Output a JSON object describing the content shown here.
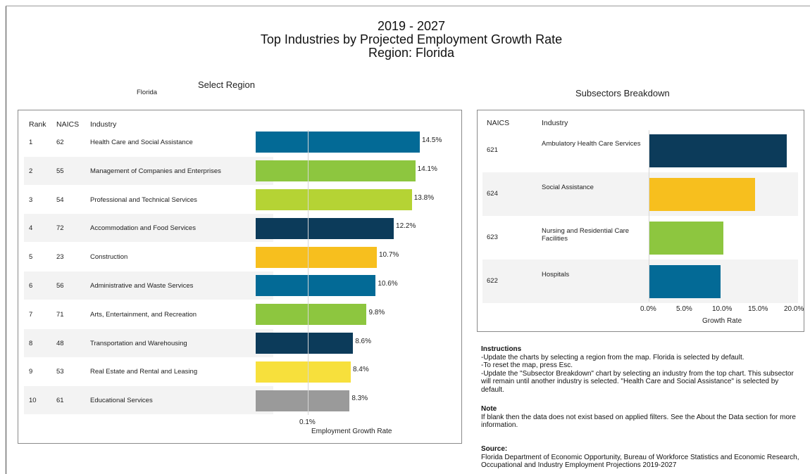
{
  "header": {
    "line1": "2019 - 2027",
    "line2": "Top Industries by Projected Employment Growth Rate",
    "line3": "Region: Florida"
  },
  "region_select": {
    "label": "Select Region",
    "value": "Florida"
  },
  "subsectors_title": "Subsectors Breakdown",
  "instructions": {
    "heading": "Instructions",
    "lines": [
      "-Update the charts by selecting a region from the map. Florida is selected by default.",
      "-To reset the map, press Esc.",
      "-Update the \"Subsector Breakdown\" chart by selecting an industry from the top chart. This subsector will remain until another industry is selected. \"Health Care and Social Assistance\" is selected by default."
    ]
  },
  "note": {
    "heading": "Note",
    "text": "If blank then the data does not exist based on applied filters. See the About the Data section for more information."
  },
  "source": {
    "heading": "Source:",
    "text": "Florida Department of Economic Opportunity, Bureau of Workforce Statistics and Economic Research, Occupational and Industry Employment Projections 2019-2027"
  },
  "chart_data": [
    {
      "type": "bar",
      "orientation": "horizontal",
      "columns": [
        "Rank",
        "NAICS",
        "Industry"
      ],
      "rows": [
        {
          "rank": "1",
          "naics": "62",
          "industry": "Health Care and Social Assistance",
          "value": 14.5,
          "label": "14.5%",
          "color": "#036a96"
        },
        {
          "rank": "2",
          "naics": "55",
          "industry": "Management of Companies and Enterprises",
          "value": 14.1,
          "label": "14.1%",
          "color": "#8dc63f"
        },
        {
          "rank": "3",
          "naics": "54",
          "industry": "Professional and Technical Services",
          "value": 13.8,
          "label": "13.8%",
          "color": "#b5d334"
        },
        {
          "rank": "4",
          "naics": "72",
          "industry": "Accommodation and Food Services",
          "value": 12.2,
          "label": "12.2%",
          "color": "#0c3b5a"
        },
        {
          "rank": "5",
          "naics": "23",
          "industry": "Construction",
          "value": 10.7,
          "label": "10.7%",
          "color": "#f7bf1e"
        },
        {
          "rank": "6",
          "naics": "56",
          "industry": "Administrative and Waste Services",
          "value": 10.6,
          "label": "10.6%",
          "color": "#036a96"
        },
        {
          "rank": "7",
          "naics": "71",
          "industry": "Arts, Entertainment, and Recreation",
          "value": 9.8,
          "label": "9.8%",
          "color": "#8dc63f"
        },
        {
          "rank": "8",
          "naics": "48",
          "industry": "Transportation and Warehousing",
          "value": 8.6,
          "label": "8.6%",
          "color": "#0c3b5a"
        },
        {
          "rank": "9",
          "naics": "53",
          "industry": "Real Estate and Rental and Leasing",
          "value": 8.4,
          "label": "8.4%",
          "color": "#f7e03c"
        },
        {
          "rank": "10",
          "naics": "61",
          "industry": "Educational Services",
          "value": 8.3,
          "label": "8.3%",
          "color": "#9a9a9a"
        }
      ],
      "x_tick": "0.1%",
      "xlabel": "Employment Growth Rate"
    },
    {
      "type": "bar",
      "orientation": "horizontal",
      "columns": [
        "NAICS",
        "Industry"
      ],
      "rows": [
        {
          "naics": "621",
          "industry": "Ambulatory Health Care Services",
          "value": 19.2,
          "color": "#0c3b5a"
        },
        {
          "naics": "624",
          "industry": "Social Assistance",
          "value": 14.8,
          "color": "#f7bf1e"
        },
        {
          "naics": "623",
          "industry": "Nursing and Residential Care Facilities",
          "value": 10.4,
          "color": "#8dc63f"
        },
        {
          "naics": "622",
          "industry": "Hospitals",
          "value": 10.0,
          "color": "#036a96"
        }
      ],
      "x_ticks": [
        "0.0%",
        "5.0%",
        "10.0%",
        "15.0%",
        "20.0%"
      ],
      "xlim": [
        0,
        20
      ],
      "xlabel": "Growth Rate"
    }
  ]
}
